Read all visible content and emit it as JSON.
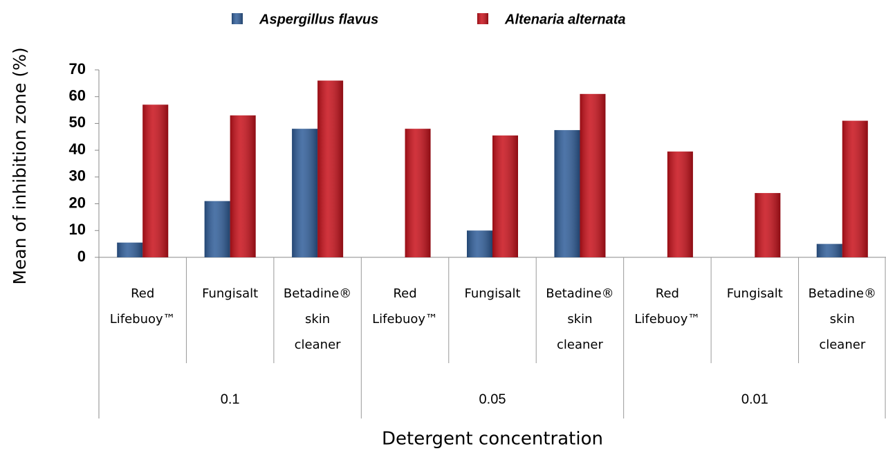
{
  "chart_data": {
    "type": "bar",
    "categories": [
      [
        "Red",
        "Lifebuoy™"
      ],
      [
        "Fungisalt"
      ],
      [
        "Betadine®",
        "skin",
        "cleaner"
      ],
      [
        "Red",
        "Lifebuoy™"
      ],
      [
        "Fungisalt"
      ],
      [
        "Betadine®",
        "skin",
        "cleaner"
      ],
      [
        "Red",
        "Lifebuoy™"
      ],
      [
        "Fungisalt"
      ],
      [
        "Betadine®",
        "skin",
        "cleaner"
      ]
    ],
    "groups": [
      "0.1",
      "0.05",
      "0.01"
    ],
    "series": [
      {
        "name": "Aspergillus flavus",
        "color": "#2f5d99",
        "values": [
          5.5,
          21,
          48,
          0,
          10,
          47.5,
          0,
          0,
          5
        ]
      },
      {
        "name": "Altenaria alternata",
        "color": "#c8101a",
        "values": [
          57,
          53,
          66,
          48,
          45.5,
          61,
          39.5,
          24,
          51
        ]
      }
    ],
    "ylabel": "Mean of inhibition zone (%)",
    "xlabel": "Detergent concentration",
    "ylim": [
      0,
      70
    ],
    "yticks": [
      0,
      10,
      20,
      30,
      40,
      50,
      60,
      70
    ],
    "grid": false,
    "legend": "top"
  }
}
